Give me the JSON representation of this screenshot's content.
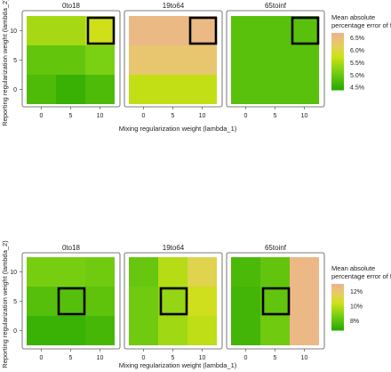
{
  "chart_data": [
    {
      "type": "heatmap",
      "xlabel": "Mixing regularization weight (lambda_1)",
      "ylabel": "Reporting regularization weight (lambda_2)",
      "legend_title": [
        "Mean absolute",
        "percentage error of fit"
      ],
      "legend_ticks": [
        "6.5%",
        "6.0%",
        "5.5%",
        "5.0%",
        "4.5%"
      ],
      "legend_values": [
        6.5,
        6.0,
        5.5,
        5.0,
        4.5
      ],
      "color_range": [
        4.4,
        6.7
      ],
      "x_ticks": [
        "0",
        "5",
        "10"
      ],
      "y_ticks": [
        "0",
        "5",
        "10"
      ],
      "x": [
        0,
        5,
        10
      ],
      "y": [
        0,
        5,
        10
      ],
      "panels": [
        {
          "name": "0to18",
          "z": [
            [
              4.8,
              4.6,
              4.8
            ],
            [
              5.0,
              5.0,
              5.2
            ],
            [
              5.5,
              5.5,
              5.8
            ]
          ],
          "highlight": [
            10,
            10
          ]
        },
        {
          "name": "19to64",
          "z": [
            [
              5.7,
              5.7,
              5.7
            ],
            [
              6.4,
              6.4,
              6.4
            ],
            [
              6.6,
              6.6,
              6.6
            ]
          ],
          "highlight": [
            10,
            10
          ]
        },
        {
          "name": "65toinf",
          "z": [
            [
              4.9,
              4.9,
              4.9
            ],
            [
              4.9,
              4.9,
              4.9
            ],
            [
              4.9,
              4.9,
              4.9
            ]
          ],
          "highlight": [
            10,
            10
          ]
        }
      ]
    },
    {
      "type": "heatmap",
      "xlabel": "Mixing regularization weight (lambda_1)",
      "ylabel": "Reporting regularization weight (lambda_2)",
      "legend_title": [
        "Mean absolute",
        "percentage error of fit"
      ],
      "legend_ticks": [
        "12%",
        "10%",
        "8%"
      ],
      "legend_values": [
        12,
        10,
        8
      ],
      "color_range": [
        6.7,
        13.0
      ],
      "x_ticks": [
        "0",
        "5",
        "10"
      ],
      "y_ticks": [
        "0",
        "5",
        "10"
      ],
      "x": [
        0,
        5,
        10
      ],
      "y": [
        0,
        5,
        10
      ],
      "panels": [
        {
          "name": "0to18",
          "z": [
            [
              7.3,
              7.3,
              7.6
            ],
            [
              8.0,
              8.0,
              8.2
            ],
            [
              8.8,
              8.8,
              8.6
            ]
          ],
          "highlight": [
            5,
            5
          ]
        },
        {
          "name": "19to64",
          "z": [
            [
              8.6,
              9.6,
              10.2
            ],
            [
              8.6,
              9.4,
              10.6
            ],
            [
              8.4,
              10.0,
              11.4
            ]
          ],
          "highlight": [
            5,
            5
          ]
        },
        {
          "name": "65toinf",
          "z": [
            [
              7.5,
              8.6,
              12.8
            ],
            [
              7.5,
              8.3,
              12.8
            ],
            [
              7.7,
              8.3,
              12.8
            ]
          ],
          "highlight": [
            5,
            5
          ]
        }
      ]
    }
  ]
}
